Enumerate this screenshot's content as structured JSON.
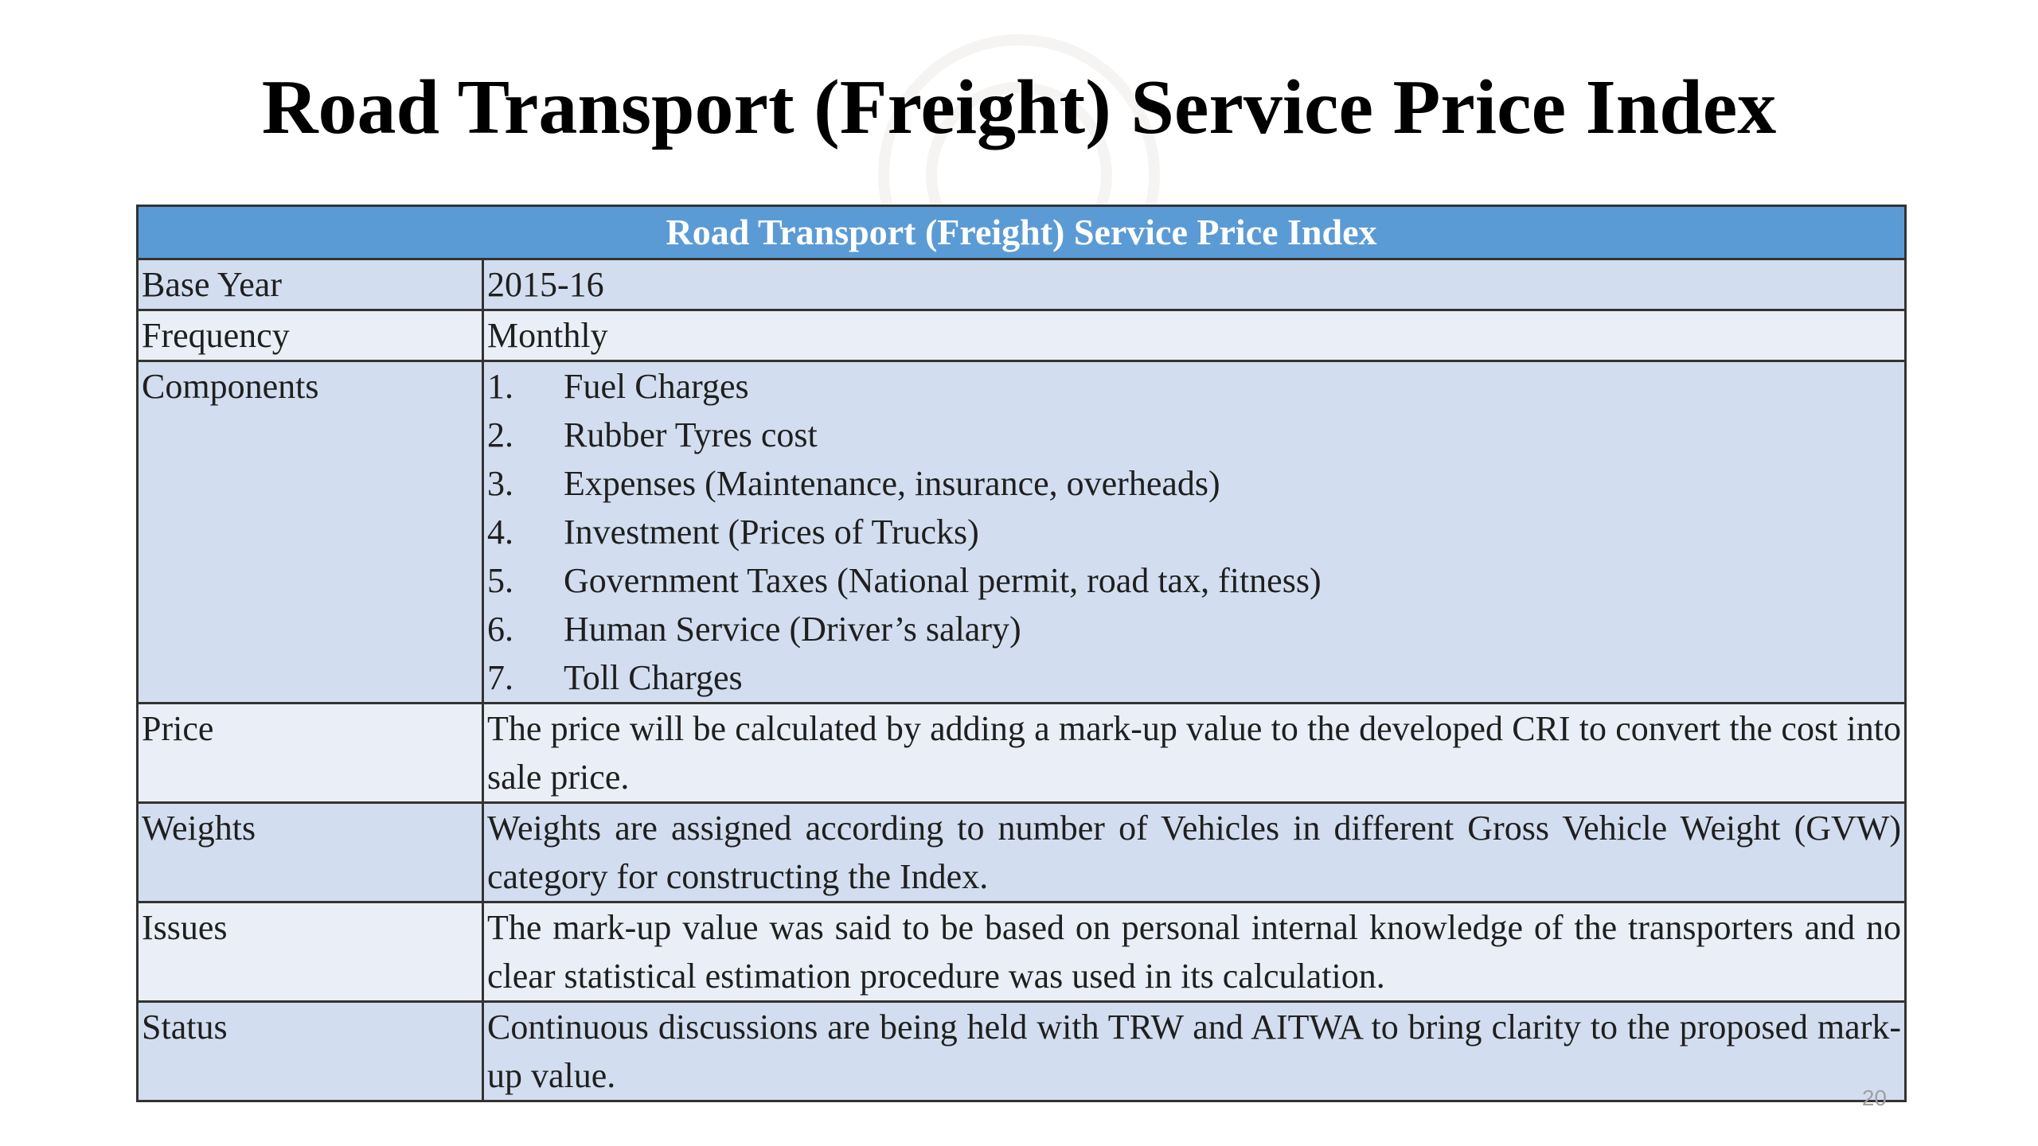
{
  "slide": {
    "title": "Road Transport (Freight) Service Price Index",
    "page_number": "20"
  },
  "table": {
    "header": "Road Transport (Freight) Service Price Index",
    "rows": {
      "base_year": {
        "label": "Base Year",
        "value": "2015-16"
      },
      "frequency": {
        "label": "Frequency",
        "value": "Monthly"
      },
      "components": {
        "label": "Components",
        "items": [
          {
            "num": "1.",
            "text": "Fuel Charges"
          },
          {
            "num": "2.",
            "text": "Rubber Tyres cost"
          },
          {
            "num": "3.",
            "text": "Expenses (Maintenance, insurance, overheads)"
          },
          {
            "num": "4.",
            "text": "Investment (Prices of Trucks)"
          },
          {
            "num": "5.",
            "text": "Government Taxes (National permit, road tax, fitness)"
          },
          {
            "num": "6.",
            "text": "Human Service (Driver’s salary)"
          },
          {
            "num": "7.",
            "text": "Toll Charges"
          }
        ]
      },
      "price": {
        "label": "Price",
        "value": "The price will be calculated by adding a mark-up value to the developed CRI to convert the cost into sale price."
      },
      "weights": {
        "label": "Weights",
        "value": "Weights are assigned according to number of Vehicles in different Gross Vehicle Weight (GVW) category for constructing the Index."
      },
      "issues": {
        "label": "Issues",
        "value": "The mark-up value was said to be based on personal internal knowledge of the transporters and no clear statistical estimation procedure was used in its calculation."
      },
      "status": {
        "label": "Status",
        "value": "Continuous discussions are being held with TRW and AITWA to bring clarity to the proposed mark-up value."
      }
    }
  },
  "colors": {
    "header_bg": "#5b9bd5",
    "row_dark": "#d2deef",
    "row_light": "#eaeff7"
  }
}
